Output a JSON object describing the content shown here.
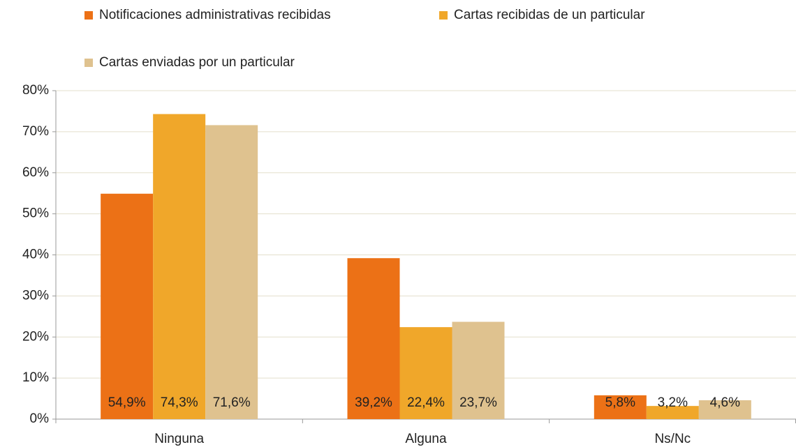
{
  "chart_data": {
    "type": "bar",
    "categories": [
      "Ninguna",
      "Alguna",
      "Ns/Nc"
    ],
    "series": [
      {
        "name": "Notificaciones administrativas recibidas",
        "color": "#ec7116",
        "values": [
          54.9,
          39.2,
          5.8
        ],
        "value_labels": [
          "54,9%",
          "39,2%",
          "5,8%"
        ]
      },
      {
        "name": "Cartas recibidas de un particular",
        "color": "#f0a72a",
        "values": [
          74.3,
          22.4,
          3.2
        ],
        "value_labels": [
          "74,3%",
          "22,4%",
          "3,2%"
        ]
      },
      {
        "name": "Cartas enviadas por un particular",
        "color": "#dfc28f",
        "values": [
          71.6,
          23.7,
          4.6
        ],
        "value_labels": [
          "71,6%",
          "23,7%",
          "4,6%"
        ]
      }
    ],
    "ylim": [
      0,
      80
    ],
    "yticks": [
      {
        "value": 0,
        "label": "0%"
      },
      {
        "value": 10,
        "label": "10%"
      },
      {
        "value": 20,
        "label": "20%"
      },
      {
        "value": 30,
        "label": "30%"
      },
      {
        "value": 40,
        "label": "40%"
      },
      {
        "value": 50,
        "label": "50%"
      },
      {
        "value": 60,
        "label": "60%"
      },
      {
        "value": 70,
        "label": "70%"
      },
      {
        "value": 80,
        "label": "80%"
      }
    ],
    "grid": true,
    "legend": "top"
  }
}
